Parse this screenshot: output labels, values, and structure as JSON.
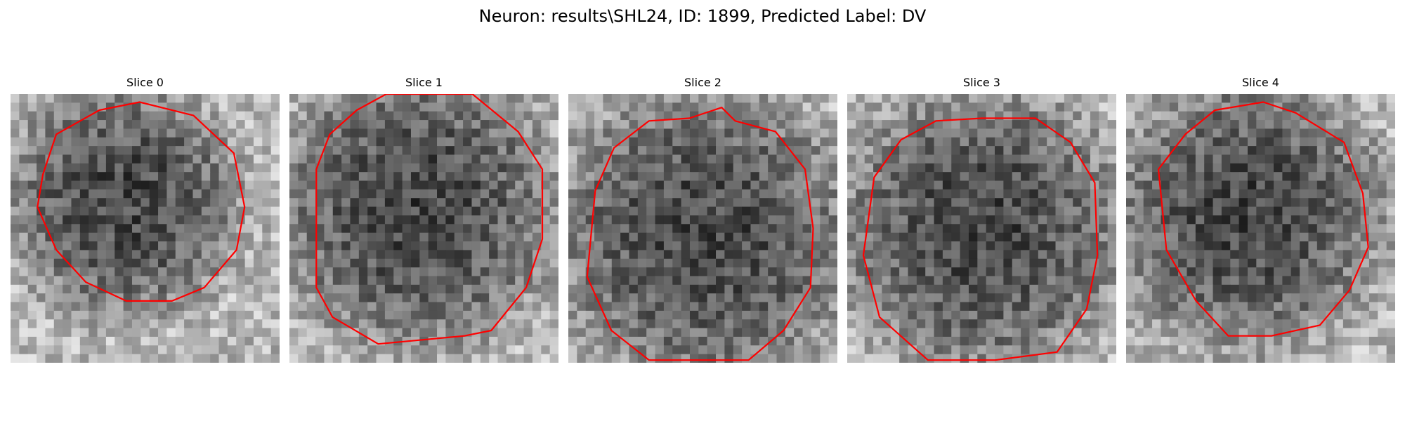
{
  "figure": {
    "title": "Neuron: results\\SHL24, ID: 1899, Predicted Label: DV"
  },
  "panels": [
    {
      "title": "Slice 0"
    },
    {
      "title": "Slice 1"
    },
    {
      "title": "Slice 2"
    },
    {
      "title": "Slice 3"
    },
    {
      "title": "Slice 4"
    }
  ],
  "colors": {
    "contour": "#ff0000",
    "colormap": "gray"
  }
}
